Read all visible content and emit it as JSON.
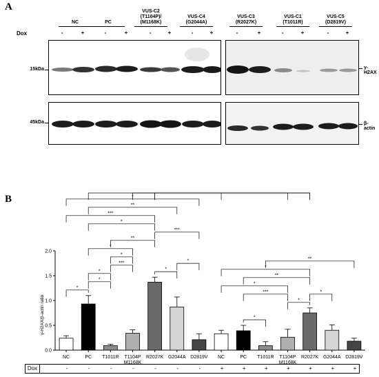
{
  "panel_a": {
    "letter": "A",
    "groups": [
      {
        "label_lines": [
          "NC"
        ]
      },
      {
        "label_lines": [
          "PC"
        ]
      },
      {
        "label_lines": [
          "VUS-C2",
          "(T1104P)/",
          "(M1168K)"
        ]
      },
      {
        "label_lines": [
          "VUS-C4",
          "(G2044A)"
        ]
      },
      {
        "label_lines": [
          "VUS-C3",
          "(R2027K)"
        ]
      },
      {
        "label_lines": [
          "VUS-C1",
          "(T1011R)"
        ]
      },
      {
        "label_lines": [
          "VUS-C5",
          "(D2819V)"
        ]
      }
    ],
    "dox_label": "Dox",
    "dose_signs": [
      "-",
      "+"
    ],
    "mw_top": "15kDa",
    "mw_bottom": "45kDa",
    "protein_top": "γ-H2AX",
    "protein_bottom": "β-actin"
  },
  "panel_b": {
    "letter": "B",
    "dox_label": "Dox",
    "dox_values": [
      "-",
      "-",
      "-",
      "-",
      "-",
      "-",
      "-",
      "+",
      "+",
      "+",
      "+",
      "+",
      "+",
      "+"
    ]
  },
  "chart_data": {
    "type": "bar",
    "ylabel": "γ-H2AX/β-actin ratio",
    "ylim": [
      0,
      2.0
    ],
    "yticks": [
      "0.0",
      "0.5",
      "1.0",
      "1.5",
      "2.0"
    ],
    "categories": [
      "NC",
      "PC",
      "T1011R",
      "T1104P M1168K",
      "R2027K",
      "G2044A",
      "D2819V",
      "NC",
      "PC",
      "T1011R",
      "T1104P M1168K",
      "R2027K",
      "G2044A",
      "D2819V"
    ],
    "category_lines": [
      [
        "NC"
      ],
      [
        "PC"
      ],
      [
        "T1011R"
      ],
      [
        "T1104P",
        "M1168K"
      ],
      [
        "R2027K"
      ],
      [
        "G2044A"
      ],
      [
        "D2819V"
      ],
      [
        "NC"
      ],
      [
        "PC"
      ],
      [
        "T1011R"
      ],
      [
        "T1104P",
        "M1168K"
      ],
      [
        "R2027K"
      ],
      [
        "G2044A"
      ],
      [
        "D2819V"
      ]
    ],
    "values": [
      0.24,
      0.93,
      0.09,
      0.34,
      1.37,
      0.87,
      0.21,
      0.33,
      0.39,
      0.09,
      0.26,
      0.75,
      0.4,
      0.18
    ],
    "errors": [
      0.05,
      0.17,
      0.03,
      0.07,
      0.1,
      0.2,
      0.12,
      0.07,
      0.11,
      0.08,
      0.16,
      0.1,
      0.11,
      0.06
    ],
    "bar_colors": [
      "#ffffff",
      "#000000",
      "#8c8c8c",
      "#b0b0b0",
      "#6a6a6a",
      "#d4d4d4",
      "#454545",
      "#ffffff",
      "#000000",
      "#8c8c8c",
      "#b0b0b0",
      "#6a6a6a",
      "#d4d4d4",
      "#454545"
    ],
    "brackets": [
      {
        "from": 1,
        "to": 7,
        "label": "*"
      },
      {
        "from": 1,
        "to": 5,
        "label": "**"
      },
      {
        "from": 0,
        "to": 6,
        "label": "*"
      },
      {
        "from": 0,
        "to": 4,
        "label": "***"
      },
      {
        "from": 1,
        "to": 4,
        "label": "*"
      },
      {
        "from": 2,
        "to": 4,
        "label": "**"
      },
      {
        "from": 4,
        "to": 11,
        "label": "*"
      },
      {
        "from": 1,
        "to": 3,
        "label": "*"
      },
      {
        "from": 3,
        "to": 11,
        "label": "**"
      },
      {
        "from": 4,
        "to": 6,
        "label": "***"
      },
      {
        "from": 4,
        "to": 10,
        "label": "*"
      },
      {
        "from": 1,
        "to": 2,
        "label": "*"
      },
      {
        "from": 2,
        "to": 3,
        "label": "***"
      },
      {
        "from": 4,
        "to": 5,
        "label": "*"
      },
      {
        "from": 0,
        "to": 1,
        "label": "*"
      },
      {
        "from": 1,
        "to": 2,
        "label": "*"
      },
      {
        "from": 2,
        "to": 3,
        "label": "*"
      },
      {
        "from": 5,
        "to": 6,
        "label": "*"
      },
      {
        "from": 8,
        "to": 11,
        "label": "**"
      },
      {
        "from": 9,
        "to": 13,
        "label": "**"
      },
      {
        "from": 7,
        "to": 11,
        "label": "*"
      },
      {
        "from": 8,
        "to": 10,
        "label": "***"
      },
      {
        "from": 7,
        "to": 10,
        "label": "*"
      },
      {
        "from": 8,
        "to": 9,
        "label": "*"
      },
      {
        "from": 10,
        "to": 11,
        "label": "*"
      },
      {
        "from": 11,
        "to": 12,
        "label": "*"
      }
    ],
    "grid": false
  }
}
